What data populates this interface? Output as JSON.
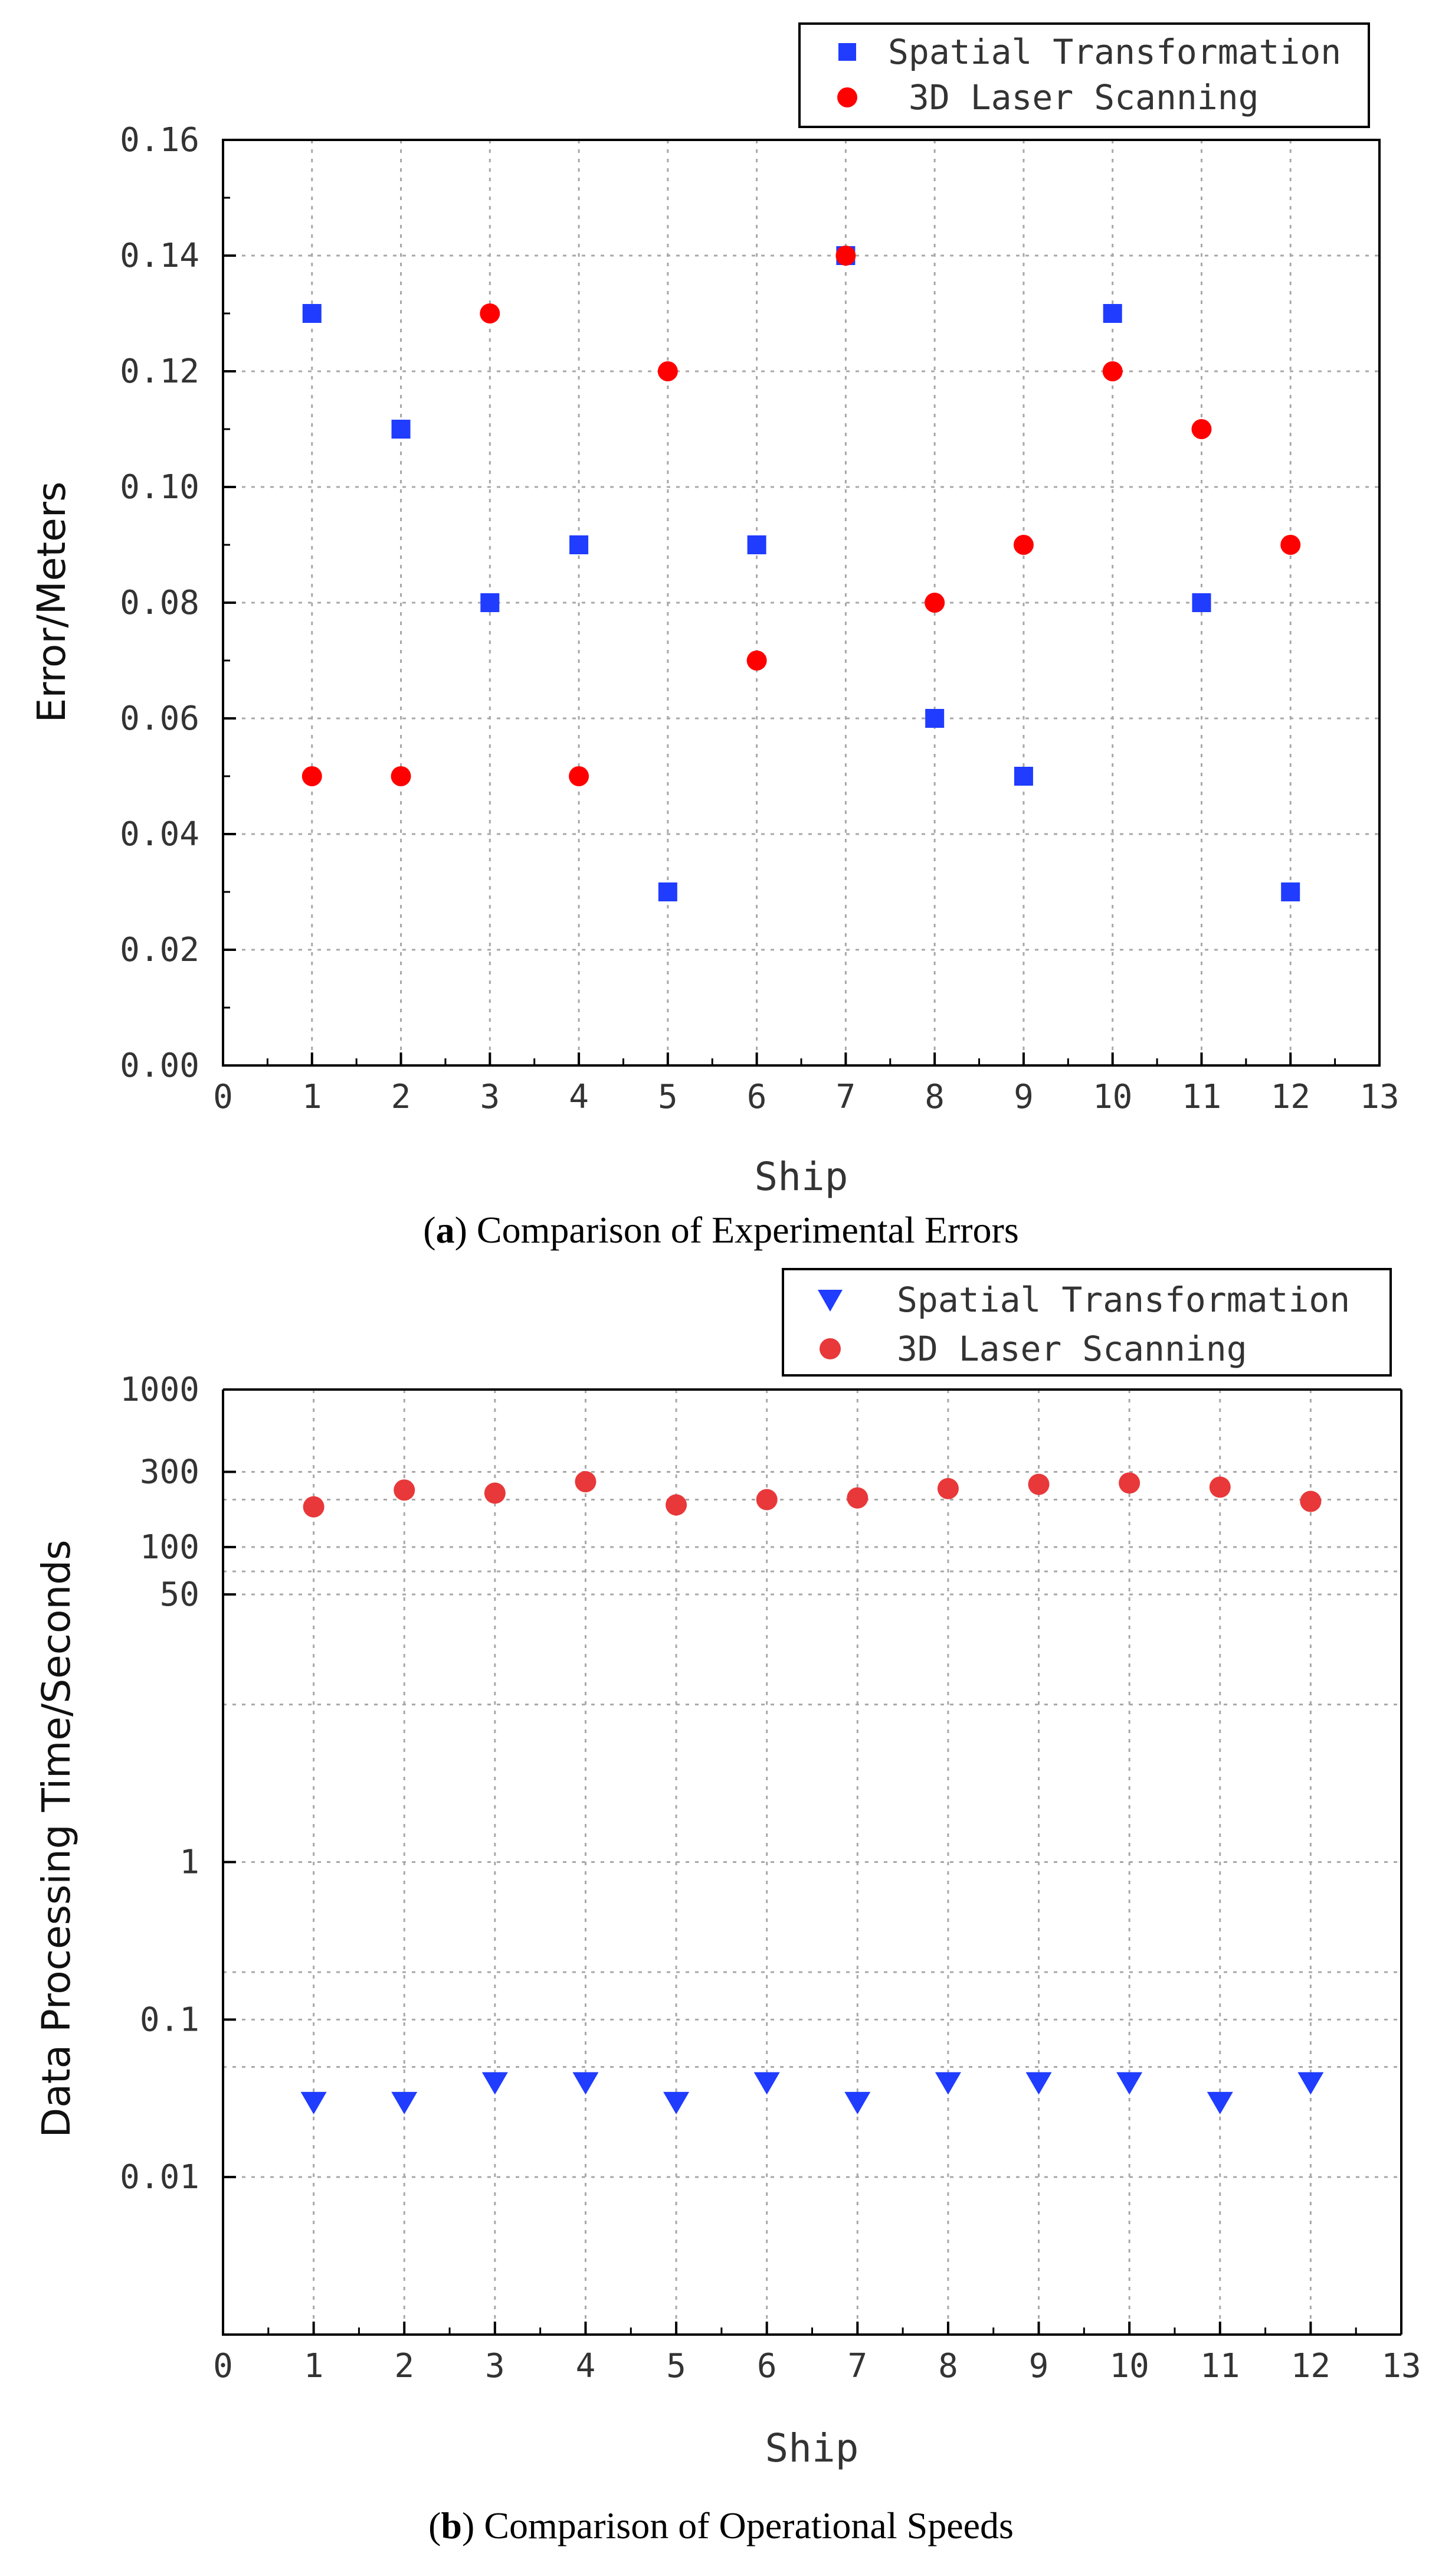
{
  "chart_data": [
    {
      "type": "scatter",
      "panel": "a",
      "caption_label": "a",
      "caption_text": " Comparison of Experimental Errors",
      "xlabel": "Ship",
      "ylabel": "Error/Meters",
      "xlim": [
        0,
        13
      ],
      "ylim": [
        0,
        0.16
      ],
      "yscale": "linear",
      "grid": true,
      "legend_position": "top-right, outside plot",
      "x_ticks": [
        "0",
        "1",
        "2",
        "3",
        "4",
        "5",
        "6",
        "7",
        "8",
        "9",
        "10",
        "11",
        "12",
        "13"
      ],
      "y_ticks": [
        "0.00",
        "0.02",
        "0.04",
        "0.06",
        "0.08",
        "0.10",
        "0.12",
        "0.14",
        "0.16"
      ],
      "series": [
        {
          "name": "Spatial Transformation",
          "legend_label": "Spatial Transformation",
          "marker": "square",
          "color": "#1f3cff",
          "x": [
            1,
            2,
            3,
            4,
            5,
            6,
            7,
            8,
            9,
            10,
            11,
            12
          ],
          "y": [
            0.13,
            0.11,
            0.08,
            0.09,
            0.03,
            0.09,
            0.14,
            0.06,
            0.05,
            0.13,
            0.08,
            0.03
          ]
        },
        {
          "name": "3D Laser Scanning",
          "legend_label": " 3D Laser Scanning",
          "marker": "circle",
          "color": "#ff0000",
          "x": [
            1,
            2,
            3,
            4,
            5,
            6,
            7,
            8,
            9,
            10,
            11,
            12
          ],
          "y": [
            0.05,
            0.05,
            0.13,
            0.05,
            0.12,
            0.07,
            0.14,
            0.08,
            0.09,
            0.12,
            0.11,
            0.09
          ]
        }
      ]
    },
    {
      "type": "scatter",
      "panel": "b",
      "caption_label": "b",
      "caption_text": " Comparison of Operational Speeds",
      "xlabel": "Ship",
      "ylabel": "Data Processing Time/Seconds",
      "xlim": [
        0,
        13
      ],
      "ylim": [
        0.001,
        1000
      ],
      "yscale": "log",
      "grid": true,
      "legend_position": "top-right, outside plot",
      "x_ticks": [
        "0",
        "1",
        "2",
        "3",
        "4",
        "5",
        "6",
        "7",
        "8",
        "9",
        "10",
        "11",
        "12",
        "13"
      ],
      "y_ticks": [
        {
          "label": "1000",
          "value": 1000
        },
        {
          "label": "300",
          "value": 300
        },
        {
          "label": "100",
          "value": 100
        },
        {
          "label": "50",
          "value": 50
        },
        {
          "label": "1",
          "value": 1
        },
        {
          "label": "0.1",
          "value": 0.1
        },
        {
          "label": "0.01",
          "value": 0.01
        }
      ],
      "minor_grid_values": [
        200,
        70,
        10,
        0.2,
        0.05
      ],
      "series": [
        {
          "name": "Spatial Transformation",
          "legend_label": "Spatial Transformation",
          "marker": "triangle-down",
          "color": "#1f3cff",
          "x": [
            1,
            2,
            3,
            4,
            5,
            6,
            7,
            8,
            9,
            10,
            11,
            12
          ],
          "y": [
            0.03,
            0.03,
            0.04,
            0.04,
            0.03,
            0.04,
            0.03,
            0.04,
            0.04,
            0.04,
            0.03,
            0.04
          ]
        },
        {
          "name": "3D Laser Scanning",
          "legend_label": "3D Laser Scanning",
          "marker": "circle",
          "color": "#e8383a",
          "x": [
            1,
            2,
            3,
            4,
            5,
            6,
            7,
            8,
            9,
            10,
            11,
            12
          ],
          "y": [
            180,
            230,
            220,
            260,
            185,
            200,
            205,
            235,
            250,
            255,
            240,
            195
          ]
        }
      ]
    }
  ]
}
